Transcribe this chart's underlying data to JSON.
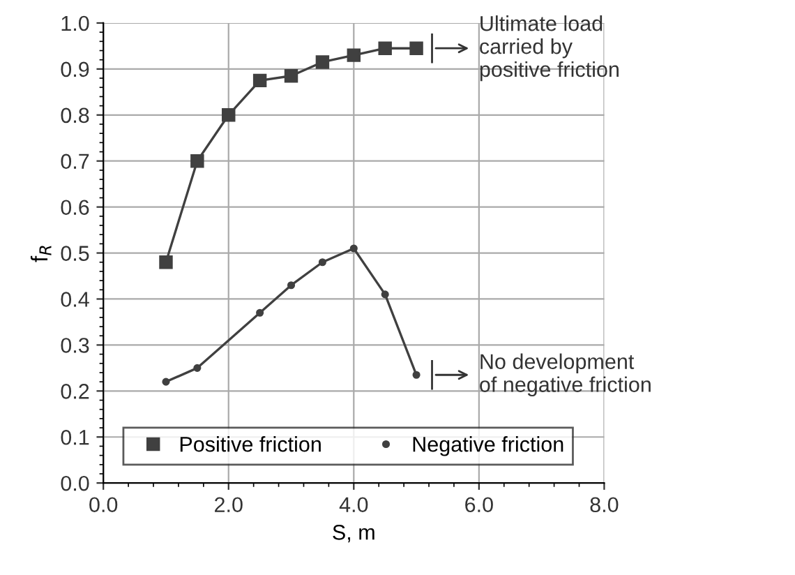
{
  "chart_data": {
    "type": "line",
    "xlabel": "S, m",
    "ylabel": "f$_{R}$",
    "series": [
      {
        "name": "Positive friction",
        "color": "#404040",
        "marker": "square",
        "x": [
          1.0,
          1.5,
          2.0,
          2.5,
          3.0,
          3.5,
          4.0,
          4.5,
          5.0
        ],
        "values": [
          0.48,
          0.7,
          0.8,
          0.875,
          0.885,
          0.915,
          0.93,
          0.945,
          0.945
        ]
      },
      {
        "name": "Negative friction",
        "color": "#404040",
        "marker": "circle",
        "x": [
          1.0,
          1.5,
          2.5,
          3.0,
          3.5,
          4.0,
          4.5,
          5.0
        ],
        "values": [
          0.22,
          0.25,
          0.37,
          0.43,
          0.48,
          0.51,
          0.41,
          0.235
        ]
      }
    ],
    "annotations": [
      {
        "text": "Ultimate load\ncarried by\npositive friction",
        "x": 5.0,
        "y": 0.945
      },
      {
        "text": "No development\nof negative friction",
        "x": 5.0,
        "y": 0.235
      }
    ],
    "xlim": [
      0,
      8
    ],
    "ylim": [
      0,
      1
    ],
    "xticks": [
      {
        "value": 0,
        "label": "0.0"
      },
      {
        "value": 2,
        "label": "2.0"
      },
      {
        "value": 4,
        "label": "4.0"
      },
      {
        "value": 6,
        "label": "6.0"
      },
      {
        "value": 8,
        "label": "8.0"
      }
    ],
    "yticks": [
      {
        "value": 0,
        "label": "0.0"
      },
      0.1,
      0.2,
      0.3,
      0.4,
      0.5,
      0.6,
      0.7,
      0.8,
      0.9,
      {
        "value": 1,
        "label": "1.0"
      }
    ],
    "grid": true,
    "legend": "bottom left",
    "line_style": "solid"
  }
}
